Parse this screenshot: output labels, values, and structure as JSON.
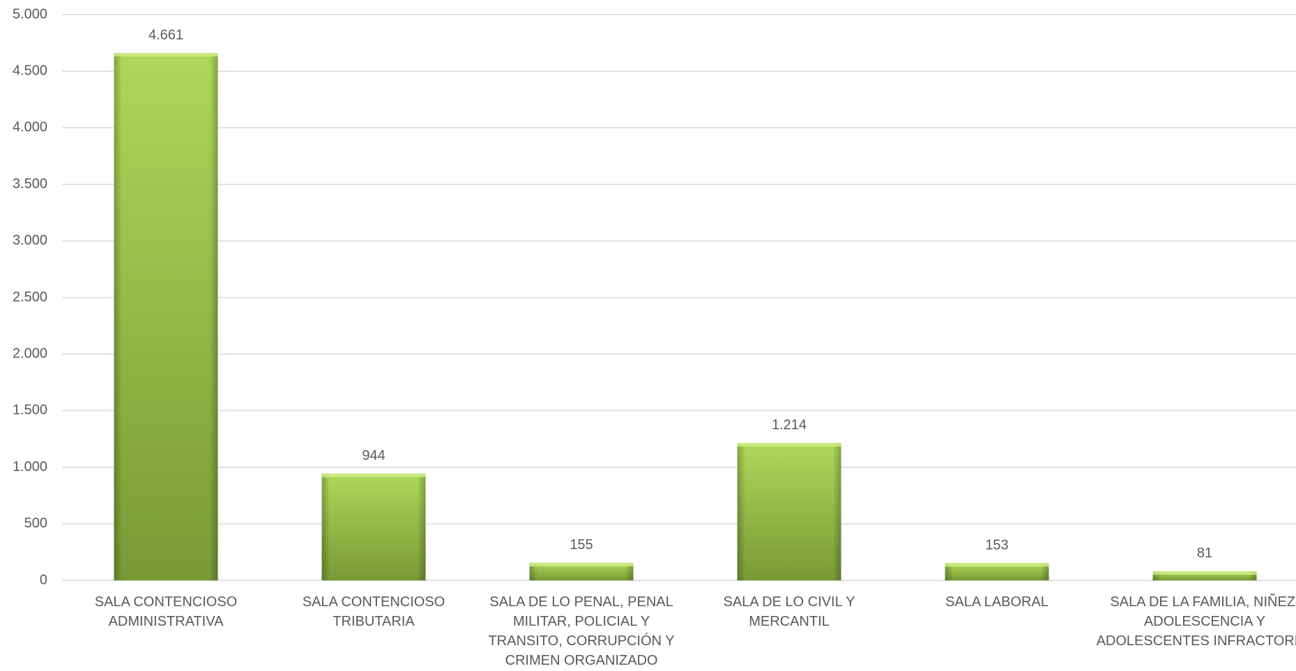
{
  "chart_data": {
    "type": "bar",
    "categories": [
      "SALA CONTENCIOSO\nADMINISTRATIVA",
      "SALA CONTENCIOSO\nTRIBUTARIA",
      "SALA DE LO PENAL, PENAL\nMILITAR, POLICIAL Y\nTRANSITO, CORRUPCIÓN Y\nCRIMEN ORGANIZADO",
      "SALA DE LO CIVIL Y\nMERCANTIL",
      "SALA LABORAL",
      "SALA DE LA FAMILIA, NIÑEZ,\nADOLESCENCIA Y\nADOLESCENTES INFRACTORES"
    ],
    "values": [
      4661,
      944,
      155,
      1214,
      153,
      81
    ],
    "value_labels": [
      "4.661",
      "944",
      "155",
      "1.214",
      "153",
      "81"
    ],
    "color": "#9acb48",
    "ylim": [
      0,
      5000
    ],
    "yticks": [
      0,
      {
        "value": 500,
        "label": "500"
      },
      {
        "value": 1000,
        "label": "1.000"
      },
      {
        "value": 1500,
        "label": "1.500"
      },
      {
        "value": 2000,
        "label": "2.000"
      },
      {
        "value": 2500,
        "label": "2.500"
      },
      {
        "value": 3000,
        "label": "3.000"
      },
      {
        "value": 3500,
        "label": "3.500"
      },
      {
        "value": 4000,
        "label": "4.000"
      },
      {
        "value": 4500,
        "label": "4.500"
      },
      {
        "value": 5000,
        "label": "5.000"
      }
    ],
    "grid": true
  }
}
